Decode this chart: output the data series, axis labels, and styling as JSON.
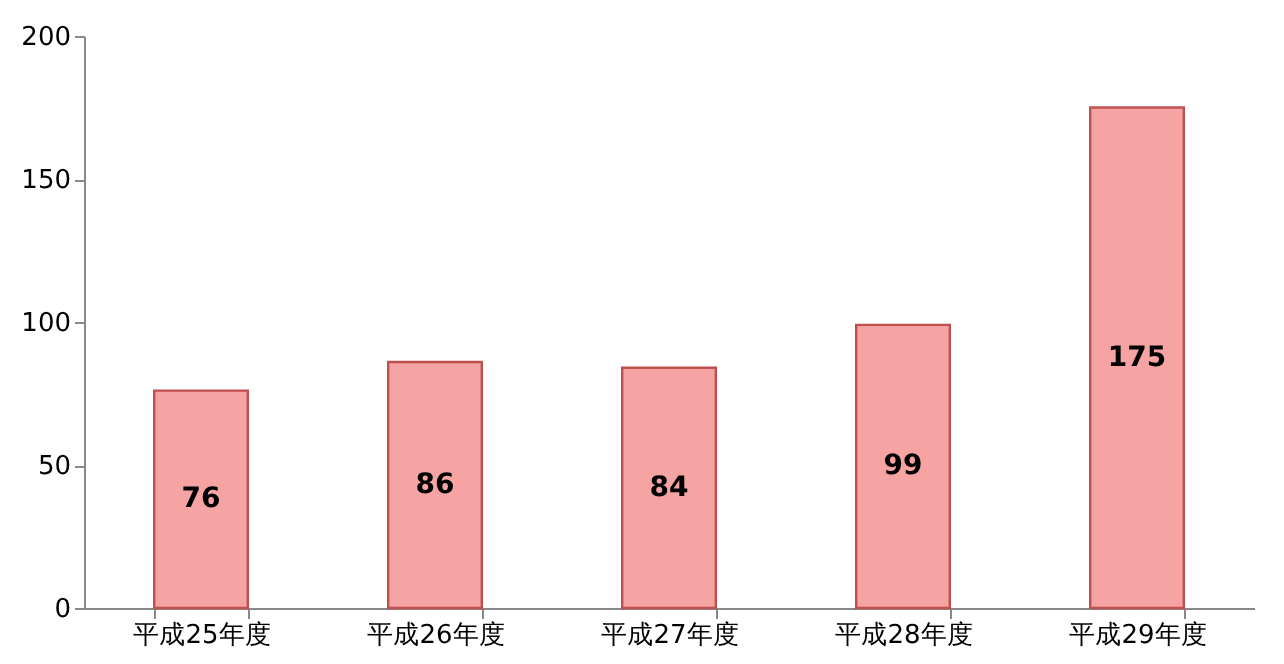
{
  "chart_data": {
    "type": "bar",
    "categories": [
      "平成25年度",
      "平成26年度",
      "平成27年度",
      "平成28年度",
      "平成29年度"
    ],
    "values": [
      76,
      86,
      84,
      99,
      175
    ],
    "color": "#f5a3a3",
    "ylim": [
      0,
      200
    ],
    "yticks": [
      0,
      50,
      100,
      150,
      200
    ],
    "grid": false,
    "data_labels": true
  }
}
